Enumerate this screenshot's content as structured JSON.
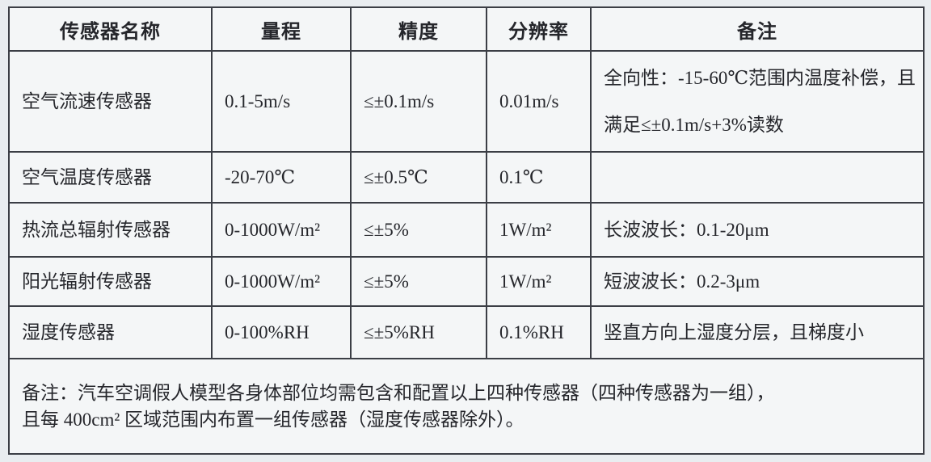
{
  "table": {
    "headers": [
      "传感器名称",
      "量程",
      "精度",
      "分辨率",
      "备注"
    ],
    "rows": [
      {
        "name": "空气流速传感器",
        "range": "0.1-5m/s",
        "accuracy": "≤±0.1m/s",
        "resolution": "0.01m/s",
        "remark": "全向性：-15-60℃范围内温度补偿，且满足≤±0.1m/s+3%读数"
      },
      {
        "name": "空气温度传感器",
        "range": "-20-70℃",
        "accuracy": "≤±0.5℃",
        "resolution": "0.1℃",
        "remark": ""
      },
      {
        "name": "热流总辐射传感器",
        "range": "0-1000W/m²",
        "accuracy": "≤±5%",
        "resolution": "1W/m²",
        "remark": "长波波长：0.1-20μm"
      },
      {
        "name": "阳光辐射传感器",
        "range": "0-1000W/m²",
        "accuracy": "≤±5%",
        "resolution": "1W/m²",
        "remark": "短波波长：0.2-3μm"
      },
      {
        "name": "湿度传感器",
        "range": "0-100%RH",
        "accuracy": "≤±5%RH",
        "resolution": "0.1%RH",
        "remark": "竖直方向上湿度分层，且梯度小"
      }
    ],
    "footer": {
      "line1": "备注：汽车空调假人模型各身体部位均需包含和配置以上四种传感器（四种传感器为一组），",
      "line2": "且每 400cm² 区域范围内布置一组传感器（湿度传感器除外）。"
    }
  },
  "colors": {
    "page_background": "#e9edf0",
    "cell_background": "#f4f6f7",
    "border": "#3b3e45",
    "text": "#25262b"
  }
}
